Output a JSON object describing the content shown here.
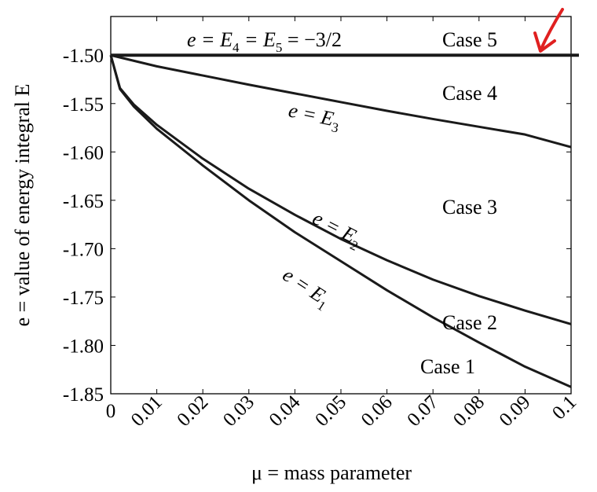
{
  "chart_data": {
    "type": "line",
    "xlabel": "μ = mass parameter",
    "ylabel": "e = value of energy integral E",
    "xlim": [
      0,
      0.1
    ],
    "ylim": [
      -1.85,
      -1.46
    ],
    "x_ticks": [
      "0",
      "0.01",
      "0.02",
      "0.03",
      "0.04",
      "0.05",
      "0.06",
      "0.07",
      "0.08",
      "0.09",
      "0.1"
    ],
    "y_ticks": [
      "-1.50",
      "-1.55",
      "-1.60",
      "-1.65",
      "-1.70",
      "-1.75",
      "-1.80",
      "-1.85"
    ],
    "grid": false,
    "series": [
      {
        "name": "e = E4 = E5 = −3/2",
        "x": [
          0,
          0.1
        ],
        "y": [
          -1.5,
          -1.5
        ]
      },
      {
        "name": "e = E3",
        "x": [
          0,
          0.01,
          0.02,
          0.03,
          0.04,
          0.05,
          0.06,
          0.07,
          0.08,
          0.09,
          0.1
        ],
        "y": [
          -1.5,
          -1.5115,
          -1.521,
          -1.5305,
          -1.5395,
          -1.5485,
          -1.5575,
          -1.566,
          -1.574,
          -1.582,
          -1.595
        ]
      },
      {
        "name": "e = E2",
        "x": [
          0,
          0.002,
          0.005,
          0.01,
          0.02,
          0.03,
          0.04,
          0.05,
          0.06,
          0.07,
          0.08,
          0.09,
          0.1
        ],
        "y": [
          -1.5,
          -1.534,
          -1.551,
          -1.572,
          -1.607,
          -1.638,
          -1.665,
          -1.69,
          -1.712,
          -1.732,
          -1.749,
          -1.764,
          -1.778
        ]
      },
      {
        "name": "e = E1",
        "x": [
          0,
          0.002,
          0.005,
          0.01,
          0.02,
          0.03,
          0.04,
          0.05,
          0.06,
          0.07,
          0.08,
          0.09,
          0.1
        ],
        "y": [
          -1.5,
          -1.535,
          -1.553,
          -1.576,
          -1.614,
          -1.65,
          -1.683,
          -1.713,
          -1.743,
          -1.771,
          -1.797,
          -1.822,
          -1.843
        ]
      }
    ],
    "annotations": {
      "e45_label": {
        "pre": "e = E",
        "sub1": "4",
        "mid": " = E",
        "sub2": "5",
        "post": " = −3/2"
      },
      "e3_label": {
        "pre": "e = E",
        "sub": "3"
      },
      "e2_label": {
        "pre": "e = E",
        "sub": "2"
      },
      "e1_label": {
        "pre": "e = E",
        "sub": "1"
      },
      "case_labels": [
        "Case 5",
        "Case 4",
        "Case 3",
        "Case 2",
        "Case 1"
      ]
    },
    "marker_color": "#e02020",
    "line_color": "#1a1a1a"
  }
}
